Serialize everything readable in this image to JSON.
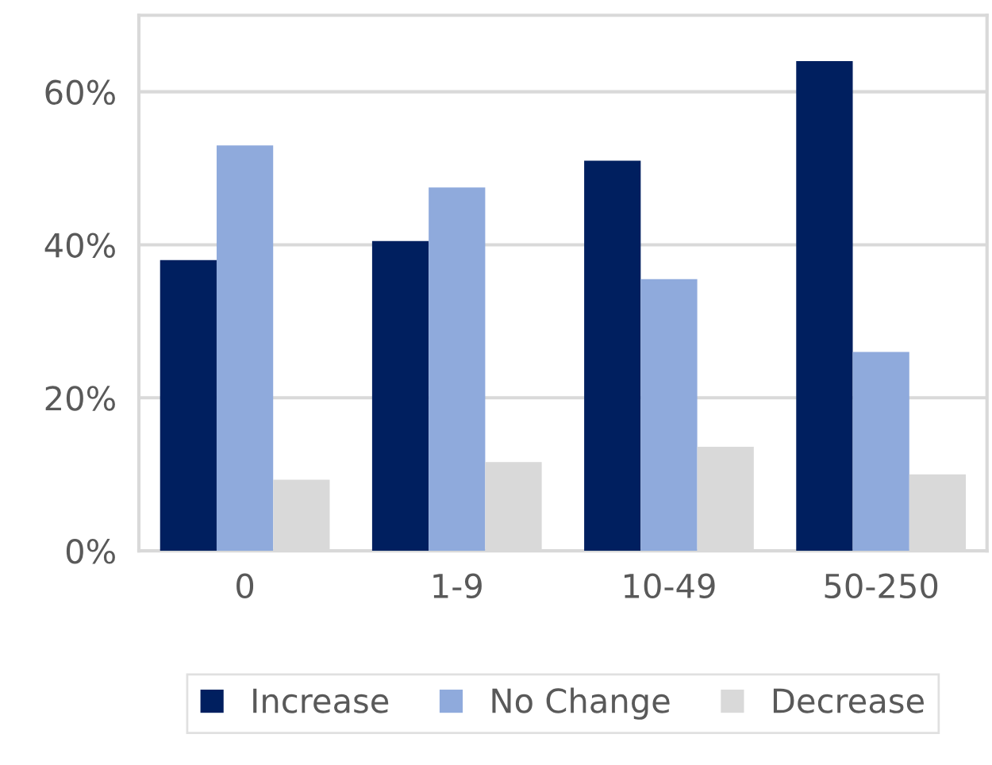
{
  "chart_data": {
    "type": "bar",
    "categories": [
      "0",
      "1-9",
      "10-49",
      "50-250"
    ],
    "series": [
      {
        "name": "Increase",
        "color": "#001f5f",
        "values": [
          38,
          40.5,
          51,
          64
        ]
      },
      {
        "name": "No Change",
        "color": "#8faadc",
        "values": [
          53,
          47.5,
          35.5,
          26
        ]
      },
      {
        "name": "Decrease",
        "color": "#d9d9d9",
        "values": [
          9.3,
          11.6,
          13.6,
          10
        ]
      }
    ],
    "ylim": [
      0,
      70
    ],
    "yticks": [
      {
        "value": 0,
        "label": "0%"
      },
      {
        "value": 20,
        "label": "20%"
      },
      {
        "value": 40,
        "label": "40%"
      },
      {
        "value": 60,
        "label": "60%"
      }
    ],
    "grid": "y",
    "legend": "bottom"
  }
}
